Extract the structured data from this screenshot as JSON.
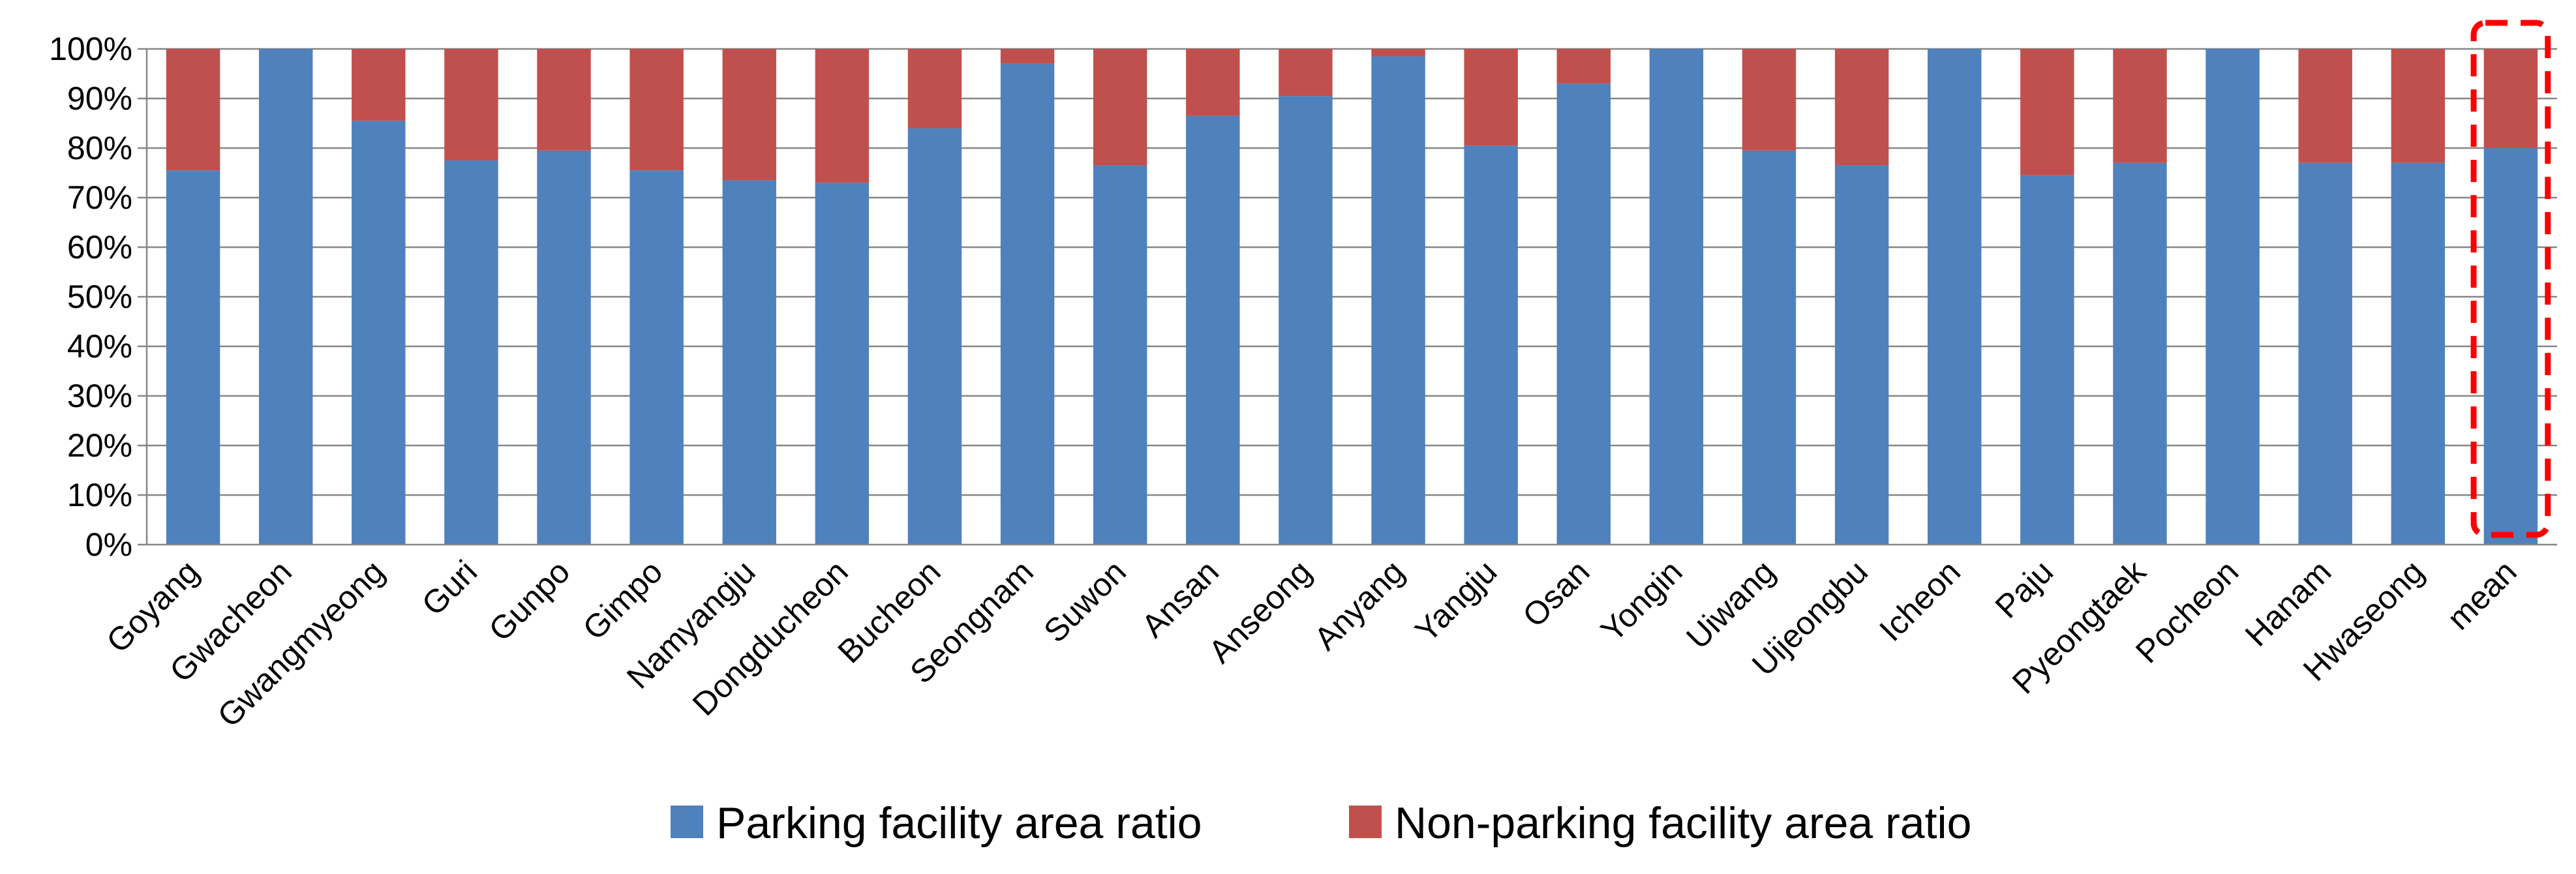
{
  "chart_data": {
    "type": "bar",
    "stacked": true,
    "normalized": true,
    "title": "",
    "xlabel": "",
    "ylabel": "",
    "ylim": [
      0,
      100
    ],
    "yticks": [
      "0%",
      "10%",
      "20%",
      "30%",
      "40%",
      "50%",
      "60%",
      "70%",
      "80%",
      "90%",
      "100%"
    ],
    "grid": true,
    "categories": [
      "Goyang",
      "Gwacheon",
      "Gwangmyeong",
      "Guri",
      "Gunpo",
      "Gimpo",
      "Namyangju",
      "Dongducheon",
      "Bucheon",
      "Seongnam",
      "Suwon",
      "Ansan",
      "Anseong",
      "Anyang",
      "Yangju",
      "Osan",
      "Yongin",
      "Uiwang",
      "Uijeongbu",
      "Icheon",
      "Paju",
      "Pyeongtaek",
      "Pocheon",
      "Hanam",
      "Hwaseong",
      "mean"
    ],
    "series": [
      {
        "name": "Parking facility area ratio",
        "color": "#4F81BD",
        "values": [
          75.5,
          100,
          85.5,
          77.5,
          79.5,
          75.5,
          73.5,
          73,
          84,
          97,
          76.5,
          86.5,
          90.5,
          98.5,
          80.5,
          93,
          100,
          79.5,
          76.5,
          100,
          74.5,
          77,
          100,
          77,
          77,
          80
        ]
      },
      {
        "name": "Non-parking facility area ratio",
        "color": "#C0504D",
        "values": [
          24.5,
          0,
          14.5,
          22.5,
          20.5,
          24.5,
          26.5,
          27,
          16,
          3,
          23.5,
          13.5,
          9.5,
          1.5,
          19.5,
          7,
          0,
          20.5,
          23.5,
          0,
          25.5,
          23,
          0,
          23,
          23,
          20
        ]
      }
    ],
    "highlight": {
      "category": "mean",
      "style": "red dashed box",
      "color": "#FF0000"
    },
    "legend": {
      "position": "bottom"
    }
  }
}
